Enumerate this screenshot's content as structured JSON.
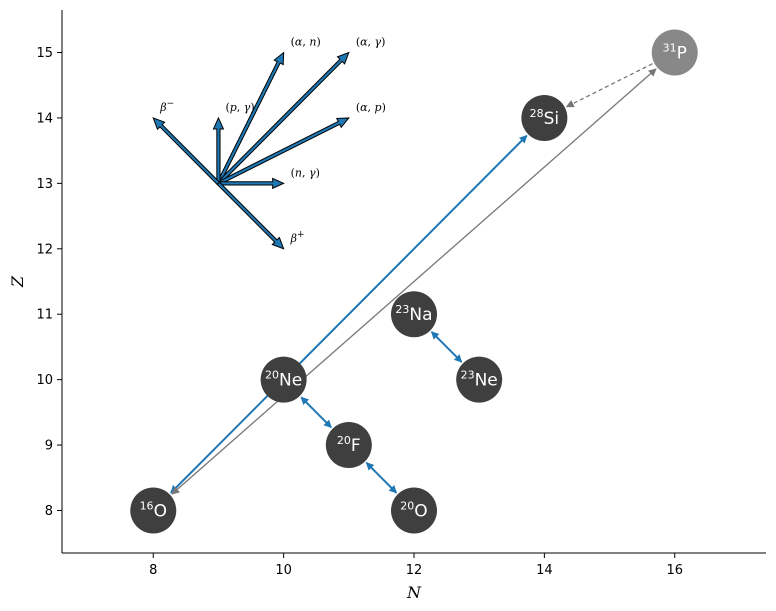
{
  "chart_data": {
    "type": "scatter",
    "title": "",
    "xlabel": "N",
    "ylabel": "Z",
    "xlim": [
      6.6,
      17.4
    ],
    "ylim": [
      7.35,
      15.65
    ],
    "xticks": [
      "8",
      "10",
      "12",
      "14",
      "16"
    ],
    "yticks": [
      "8",
      "9",
      "10",
      "11",
      "12",
      "13",
      "14",
      "15"
    ],
    "grid": false,
    "colors": {
      "node": "#3f3f3f",
      "node_highlight": "#888888",
      "node_text": "#ffffff",
      "flow": "#1f77b4",
      "flow_grey": "#777777",
      "key_fill": "#1f77b4",
      "key_stroke": "#000000"
    },
    "nuclides": [
      {
        "id": "O16",
        "mass": "16",
        "symbol": "O",
        "N": 8,
        "Z": 8,
        "highlight": false
      },
      {
        "id": "Ne20",
        "mass": "20",
        "symbol": "Ne",
        "N": 10,
        "Z": 10,
        "highlight": false
      },
      {
        "id": "F20",
        "mass": "20",
        "symbol": "F",
        "N": 11,
        "Z": 9,
        "highlight": false
      },
      {
        "id": "O20",
        "mass": "20",
        "symbol": "O",
        "N": 12,
        "Z": 8,
        "highlight": false
      },
      {
        "id": "Na23",
        "mass": "23",
        "symbol": "Na",
        "N": 12,
        "Z": 11,
        "highlight": false
      },
      {
        "id": "Ne23",
        "mass": "23",
        "symbol": "Ne",
        "N": 13,
        "Z": 10,
        "highlight": false
      },
      {
        "id": "Si28",
        "mass": "28",
        "symbol": "Si",
        "N": 14,
        "Z": 14,
        "highlight": false
      },
      {
        "id": "P31",
        "mass": "31",
        "symbol": "P",
        "N": 16,
        "Z": 15,
        "highlight": true
      }
    ],
    "flows": [
      {
        "from": "O16",
        "to": "Si28",
        "style": "solid",
        "color": "flow",
        "double": true
      },
      {
        "from": "Ne20",
        "to": "F20",
        "style": "solid",
        "color": "flow",
        "double": true
      },
      {
        "from": "F20",
        "to": "O20",
        "style": "solid",
        "color": "flow",
        "double": true
      },
      {
        "from": "Na23",
        "to": "Ne23",
        "style": "solid",
        "color": "flow",
        "double": true
      },
      {
        "from": "O16",
        "to": "P31",
        "style": "solid",
        "color": "flow_grey",
        "double": true
      },
      {
        "from": "P31",
        "to": "Si28",
        "style": "dashed",
        "color": "flow_grey",
        "double": false
      }
    ],
    "key": {
      "origin": {
        "N": 9,
        "Z": 13
      },
      "arrows": [
        {
          "name": "alpha-n",
          "math": "α",
          "comma": ",",
          "particle": "n",
          "dN": 1,
          "dZ": 2
        },
        {
          "name": "alpha-gamma",
          "math": "α",
          "comma": ",",
          "particle": "γ",
          "dN": 2,
          "dZ": 2
        },
        {
          "name": "alpha-p",
          "math": "α",
          "comma": ",",
          "particle": "p",
          "dN": 2,
          "dZ": 1
        },
        {
          "name": "p-gamma",
          "math": "p",
          "comma": ",",
          "particle": "γ",
          "dN": 0,
          "dZ": 1
        },
        {
          "name": "n-gamma",
          "math": "n",
          "comma": ",",
          "particle": "γ",
          "dN": 1,
          "dZ": 0
        },
        {
          "name": "beta-minus",
          "math": "β",
          "sup": "−",
          "dN": -1,
          "dZ": 1
        },
        {
          "name": "beta-plus",
          "math": "β",
          "sup": "+",
          "dN": 1,
          "dZ": -1
        }
      ]
    }
  }
}
